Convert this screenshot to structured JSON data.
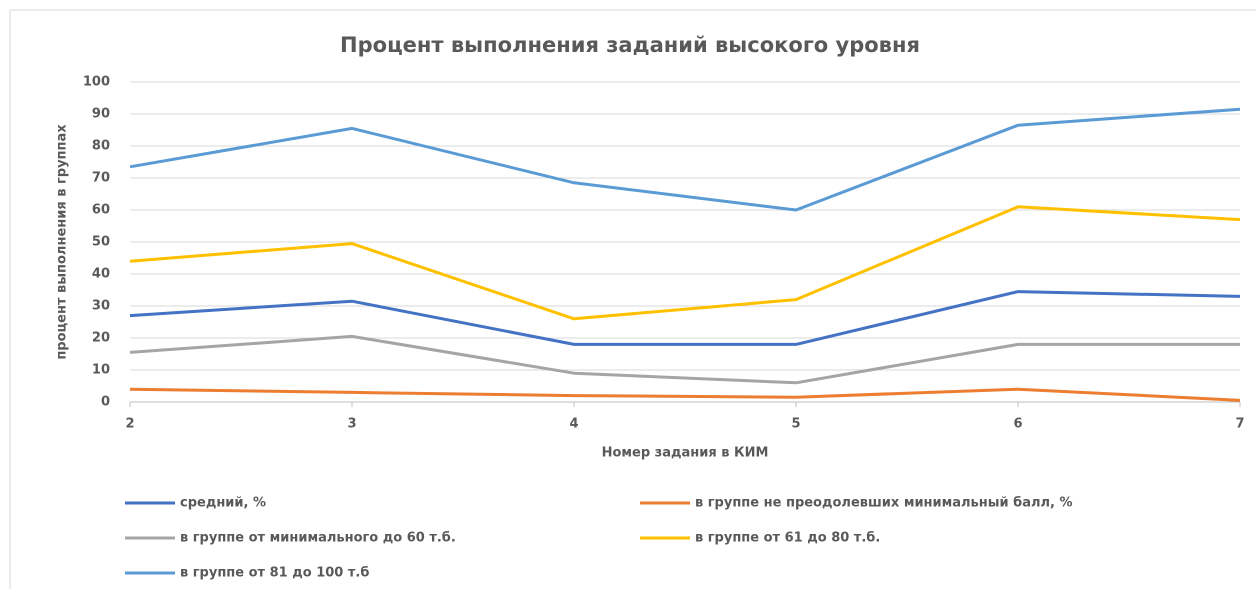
{
  "chart_data": {
    "type": "line",
    "title": "Процент выполнения заданий высокого уровня",
    "x_label": "Номер задания в КИМ",
    "y_label": "процент выполнения в группах",
    "x": [
      2,
      3,
      4,
      5,
      6,
      7
    ],
    "xlim": [
      2,
      7
    ],
    "xticks": [
      2,
      3,
      4,
      5,
      6,
      7
    ],
    "ylim": [
      0,
      100
    ],
    "yticks": [
      0,
      10,
      20,
      30,
      40,
      50,
      60,
      70,
      80,
      90,
      100
    ],
    "grid": true,
    "legend": "bottom",
    "series": [
      {
        "name": "средний, %",
        "color": "#4472c4",
        "values": [
          27,
          31.5,
          18,
          18,
          34.5,
          33
        ]
      },
      {
        "name": "в группе не преодолевших минимальный балл, %",
        "color": "#ed7d31",
        "values": [
          4,
          3,
          2,
          1.5,
          4,
          0.5
        ]
      },
      {
        "name": "в группе от минимального до 60 т.б.",
        "color": "#a5a5a5",
        "values": [
          15.5,
          20.5,
          9,
          6,
          18,
          18
        ]
      },
      {
        "name": "в группе от 61 до 80 т.б.",
        "color": "#ffc000",
        "values": [
          44,
          49.5,
          26,
          32,
          61,
          57
        ]
      },
      {
        "name": "в группе от 81 до 100 т.б",
        "color": "#5b9bd5",
        "values": [
          73.5,
          85.5,
          68.5,
          60,
          86.5,
          91.5
        ]
      }
    ]
  }
}
